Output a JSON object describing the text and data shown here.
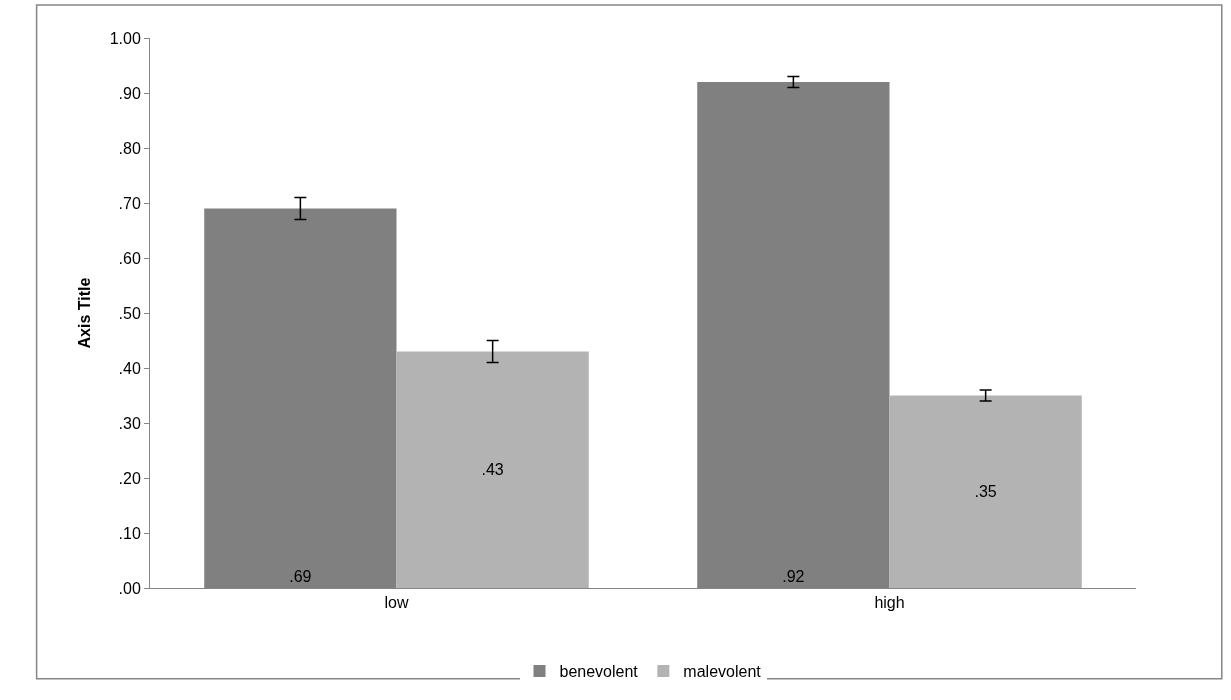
{
  "chart_data": {
    "type": "bar",
    "ylabel": "Axis Title",
    "categories": [
      "low",
      "high"
    ],
    "series": [
      {
        "name": "benevolent",
        "color": "#808080",
        "values": [
          0.69,
          0.92
        ],
        "errors": [
          0.02,
          0.01
        ],
        "value_labels": [
          ".69",
          ".92"
        ]
      },
      {
        "name": "malevolent",
        "color": "#b3b3b3",
        "values": [
          0.43,
          0.35
        ],
        "errors": [
          0.02,
          0.01
        ],
        "value_labels": [
          ".43",
          ".35"
        ]
      }
    ],
    "ylim": [
      0,
      1
    ],
    "yticks": [
      {
        "value": 0,
        "label": ".00"
      },
      {
        "value": 0.1,
        "label": ".10"
      },
      {
        "value": 0.2,
        "label": ".20"
      },
      {
        "value": 0.3,
        "label": ".30"
      },
      {
        "value": 0.4,
        "label": ".40"
      },
      {
        "value": 0.5,
        "label": ".50"
      },
      {
        "value": 0.6,
        "label": ".60"
      },
      {
        "value": 0.7,
        "label": ".70"
      },
      {
        "value": 0.8,
        "label": ".80"
      },
      {
        "value": 0.9,
        "label": ".90"
      },
      {
        "value": 1,
        "label": "1.00"
      }
    ],
    "legend": "bottom"
  }
}
